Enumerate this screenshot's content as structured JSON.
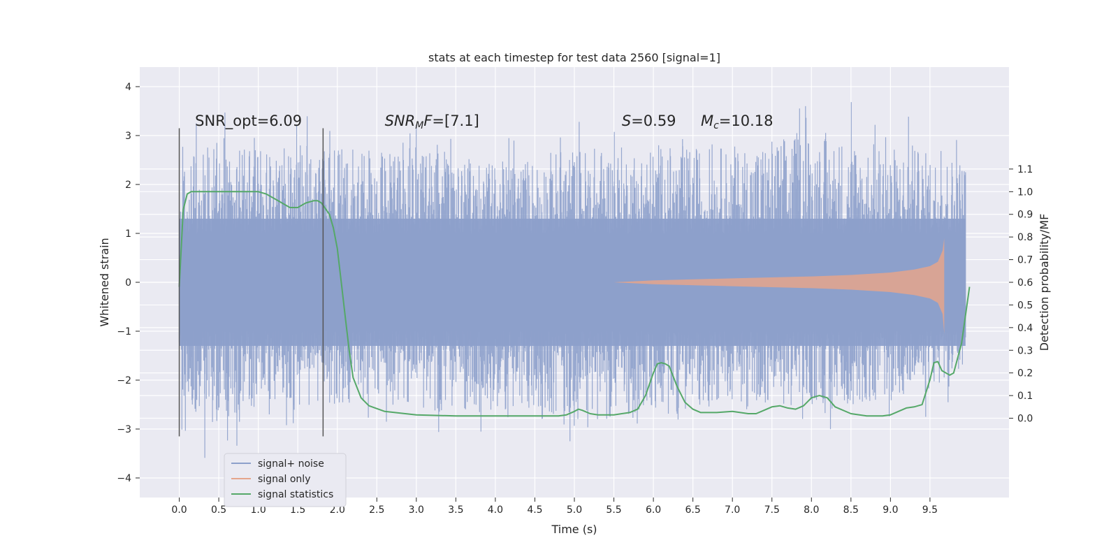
{
  "chart_data": {
    "type": "line",
    "title": "stats at each timestep for test data 2560 [signal=1]",
    "xlabel": "Time (s)",
    "ylabel": "Whitened strain",
    "ylabel_right": "Detection probability/MF",
    "xlim": [
      -0.5,
      10.5
    ],
    "ylim": [
      -4.4,
      4.4
    ],
    "ylim_right": [
      -0.35,
      1.55
    ],
    "x_ticks": [
      0.0,
      0.5,
      1.0,
      1.5,
      2.0,
      2.5,
      3.0,
      3.5,
      4.0,
      4.5,
      5.0,
      5.5,
      6.0,
      6.5,
      7.0,
      7.5,
      8.0,
      8.5,
      9.0,
      9.5
    ],
    "x_tick_labels": [
      "0.0",
      "0.5",
      "1.0",
      "1.5",
      "2.0",
      "2.5",
      "3.0",
      "3.5",
      "4.0",
      "4.5",
      "5.0",
      "5.5",
      "6.0",
      "6.5",
      "7.0",
      "7.5",
      "8.0",
      "8.5",
      "9.0",
      "9.5"
    ],
    "y_ticks": [
      -4,
      -3,
      -2,
      -1,
      0,
      1,
      2,
      3,
      4
    ],
    "y_tick_labels": [
      "−4",
      "−3",
      "−2",
      "−1",
      "0",
      "1",
      "2",
      "3",
      "4"
    ],
    "y_ticks_right": [
      0.0,
      0.1,
      0.2,
      0.3,
      0.4,
      0.5,
      0.6,
      0.7,
      0.8,
      0.9,
      1.0,
      1.1
    ],
    "y_tick_labels_right": [
      "0.0",
      "0.1",
      "0.2",
      "0.3",
      "0.4",
      "0.5",
      "0.6",
      "0.7",
      "0.8",
      "0.9",
      "1.0",
      "1.1"
    ],
    "grid": true,
    "legend_position": "lower-left",
    "series": [
      {
        "name": "signal+ noise",
        "axis": "left",
        "color": "#8da0cb",
        "envelope_time": [
          0.0,
          1.0,
          2.0,
          3.0,
          4.0,
          5.0,
          6.0,
          7.0,
          8.0,
          9.0,
          9.95
        ],
        "envelope_min": [
          -4.0,
          -3.1,
          -3.1,
          -3.2,
          -3.5,
          -3.5,
          -3.5,
          -3.0,
          -3.2,
          -3.0,
          -2.5
        ],
        "envelope_max": [
          3.5,
          3.5,
          3.5,
          3.5,
          3.0,
          3.5,
          3.5,
          3.5,
          4.0,
          3.5,
          3.2
        ],
        "dense_band": [
          -1.3,
          1.3
        ]
      },
      {
        "name": "signal only",
        "axis": "left",
        "color": "#e5a58c",
        "amplitude_time": [
          5.5,
          6.0,
          7.0,
          8.0,
          8.5,
          9.0,
          9.3,
          9.5,
          9.6,
          9.66,
          9.68
        ],
        "amplitude": [
          0.0,
          0.04,
          0.08,
          0.12,
          0.15,
          0.2,
          0.26,
          0.33,
          0.42,
          0.65,
          0.9
        ],
        "amplitude_min": [
          0.0,
          0.04,
          0.08,
          0.12,
          0.15,
          0.2,
          0.26,
          0.33,
          0.42,
          0.65,
          1.05
        ]
      },
      {
        "name": "signal statistics",
        "axis": "right",
        "color": "#55a868",
        "x": [
          0.0,
          0.05,
          0.1,
          0.15,
          0.2,
          0.4,
          0.6,
          0.8,
          1.0,
          1.1,
          1.2,
          1.3,
          1.4,
          1.5,
          1.6,
          1.7,
          1.75,
          1.8,
          1.9,
          1.95,
          2.0,
          2.05,
          2.1,
          2.15,
          2.2,
          2.3,
          2.4,
          2.6,
          3.0,
          3.5,
          4.0,
          4.5,
          4.8,
          4.9,
          5.0,
          5.05,
          5.1,
          5.2,
          5.3,
          5.5,
          5.7,
          5.8,
          5.9,
          6.0,
          6.05,
          6.1,
          6.15,
          6.2,
          6.3,
          6.4,
          6.5,
          6.6,
          6.8,
          7.0,
          7.2,
          7.3,
          7.4,
          7.5,
          7.6,
          7.7,
          7.8,
          7.9,
          8.0,
          8.1,
          8.2,
          8.3,
          8.5,
          8.7,
          8.9,
          9.0,
          9.1,
          9.2,
          9.3,
          9.4,
          9.5,
          9.55,
          9.6,
          9.65,
          9.75,
          9.8,
          9.9,
          10.0
        ],
        "y": [
          0.58,
          0.92,
          0.99,
          1.0,
          1.0,
          1.0,
          1.0,
          1.0,
          1.0,
          0.99,
          0.97,
          0.95,
          0.93,
          0.93,
          0.95,
          0.96,
          0.96,
          0.95,
          0.9,
          0.84,
          0.75,
          0.6,
          0.45,
          0.3,
          0.18,
          0.09,
          0.055,
          0.03,
          0.015,
          0.01,
          0.01,
          0.01,
          0.01,
          0.015,
          0.03,
          0.04,
          0.035,
          0.02,
          0.015,
          0.015,
          0.025,
          0.04,
          0.1,
          0.2,
          0.24,
          0.245,
          0.24,
          0.23,
          0.14,
          0.07,
          0.04,
          0.025,
          0.025,
          0.03,
          0.02,
          0.02,
          0.035,
          0.05,
          0.055,
          0.045,
          0.04,
          0.055,
          0.09,
          0.1,
          0.09,
          0.05,
          0.02,
          0.01,
          0.01,
          0.015,
          0.03,
          0.045,
          0.05,
          0.06,
          0.17,
          0.245,
          0.25,
          0.21,
          0.19,
          0.2,
          0.33,
          0.58
        ]
      }
    ],
    "markers": {
      "vertical_lines": [
        0.0,
        1.82
      ],
      "vertical_line_range": [
        -3.15,
        3.15
      ]
    },
    "annotations": [
      {
        "id": "snr-opt",
        "text": "SNR_opt=6.09",
        "x": 0.2,
        "y": 3.2
      },
      {
        "id": "snr-mf",
        "text_main": "SNR",
        "text_sub": "M",
        "text_rest": "F=[7.1]",
        "x": 2.6,
        "y": 3.2
      },
      {
        "id": "s",
        "text_italic": "S",
        "text_rest": "=0.59",
        "x": 5.6,
        "y": 3.2
      },
      {
        "id": "mc",
        "text_italic": "M",
        "text_sub": "c",
        "text_rest": "=10.18",
        "x": 6.6,
        "y": 3.2
      }
    ]
  }
}
